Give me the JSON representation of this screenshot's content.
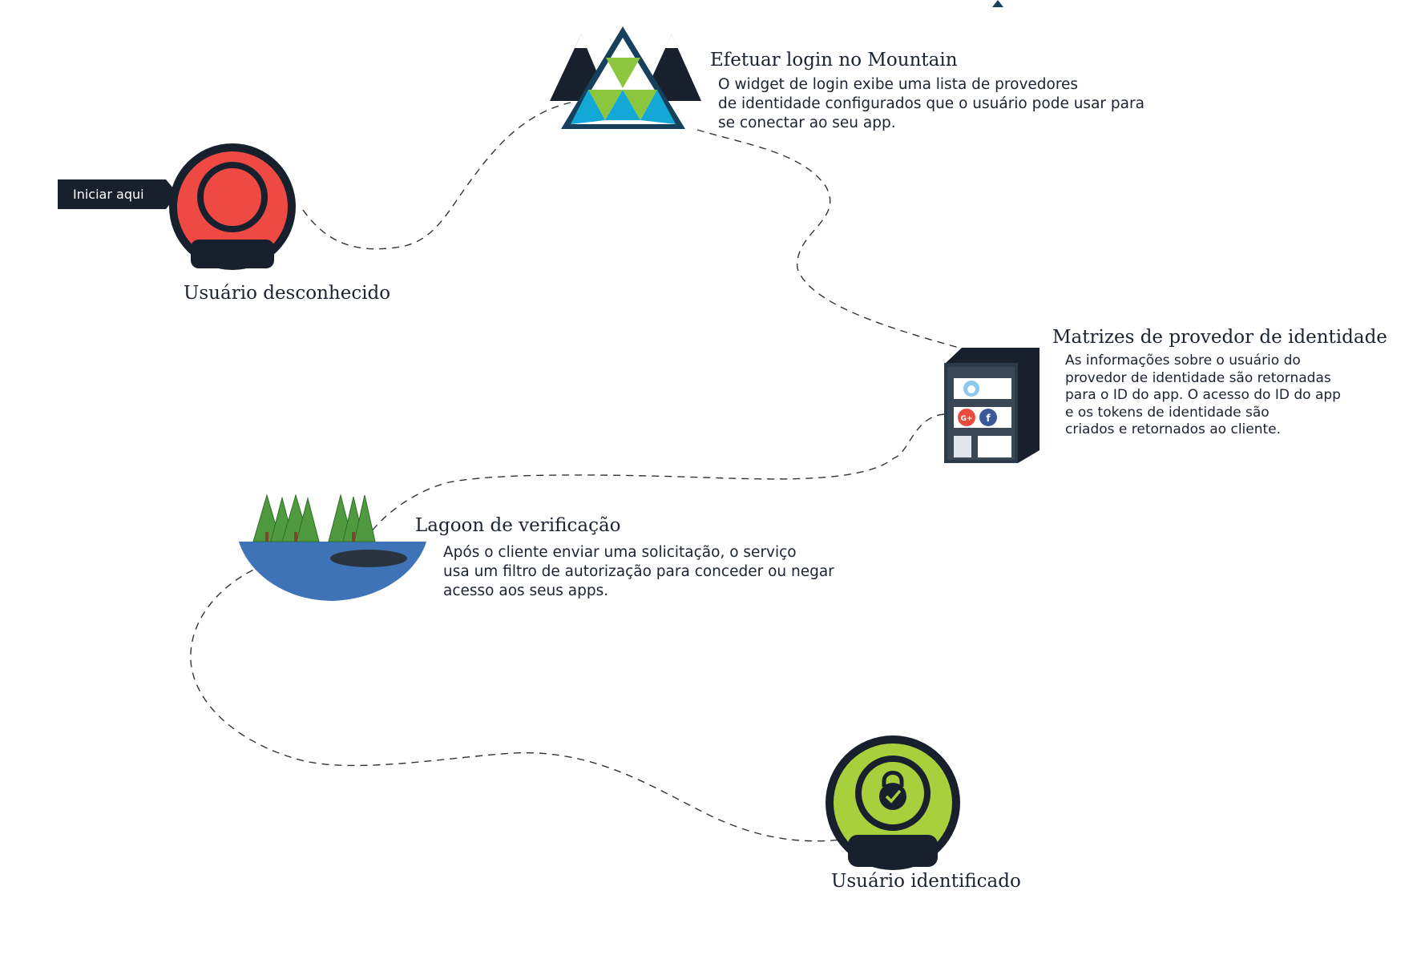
{
  "start_badge": "Iniciar aqui",
  "nodes": {
    "unknown_user": {
      "title": "Usuário desconhecido"
    },
    "login": {
      "title": "Efetuar login no Mountain",
      "description": "O widget de login exibe uma lista de provedores\nde identidade configurados que o usuário pode usar para\nse conectar ao seu app."
    },
    "provider": {
      "title": "Matrizes de provedor de identidade",
      "description": "As informações sobre o usuário do\nprovedor de identidade são retornadas\npara o ID do app. O acesso do ID do app\ne os tokens de identidade são\ncriados e retornados ao cliente."
    },
    "lagoon": {
      "title": "Lagoon de verificação",
      "description": "Após o cliente enviar uma solicitação, o serviço\nusa um filtro de autorização para conceder ou negar\nacesso aos seus apps."
    },
    "identified_user": {
      "title": "Usuário identificado"
    }
  },
  "icons": {
    "unknown_user": "red-user-circle-icon",
    "login": "mountain-triangle-icon",
    "provider": "identity-provider-server-icon",
    "lagoon": "lagoon-island-icon",
    "identified_user": "green-user-lock-icon"
  },
  "colors": {
    "dark": "#17202c",
    "red": "#ef4944",
    "green": "#a8cf3c",
    "lake_blue": "#3f73b7",
    "tree_green": "#4f9a3e",
    "triangle_green": "#8cc63f",
    "triangle_blue": "#14a8d6",
    "google_red": "#e94b3c",
    "facebook_blue": "#3b5998"
  }
}
